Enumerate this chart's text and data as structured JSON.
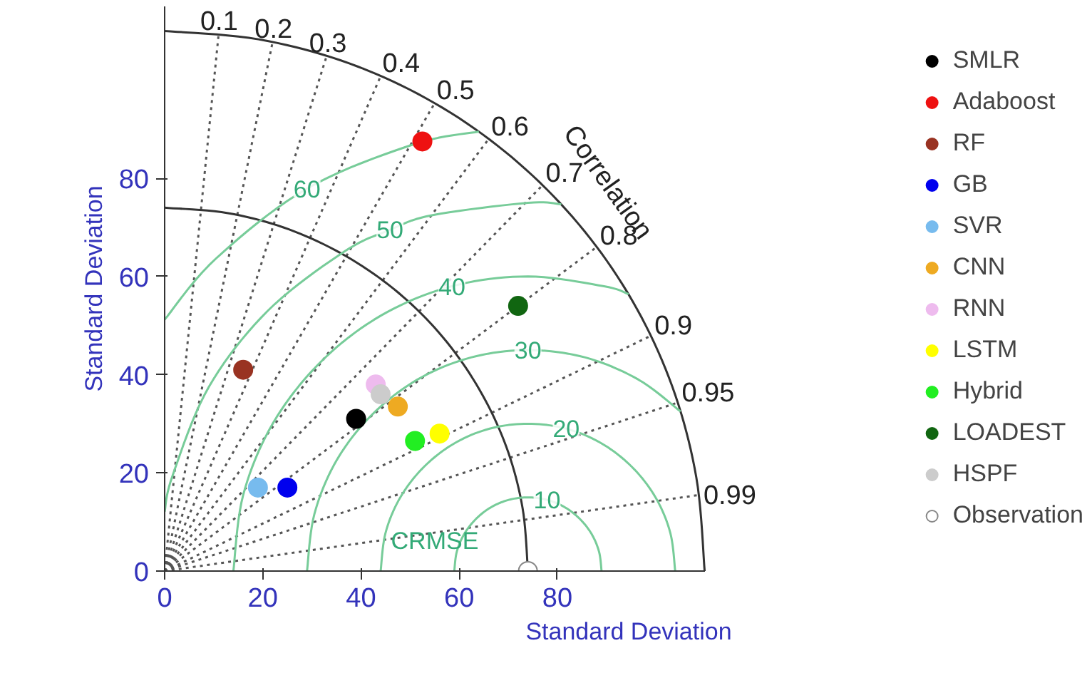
{
  "chart_data": {
    "type": "scatter",
    "xlabel": "Standard Deviation",
    "ylabel": "Standard Deviation",
    "xlim": [
      0,
      110
    ],
    "ylim": [
      0,
      115
    ],
    "xticks": [
      0,
      20,
      40,
      60,
      80
    ],
    "yticks": [
      0,
      20,
      40,
      60,
      80
    ],
    "legend": "right",
    "marker": "circle",
    "series": [
      {
        "type": "line",
        "marker": "none",
        "line_style": "dotted",
        "color": "#555555",
        "x": [
          0,
          11
        ],
        "values": [
          0,
          109.4
        ]
      },
      {
        "type": "line",
        "marker": "none",
        "line_style": "dotted",
        "color": "#555555",
        "x": [
          0,
          22
        ],
        "values": [
          0,
          107.8
        ]
      },
      {
        "type": "line",
        "marker": "none",
        "line_style": "dotted",
        "color": "#555555",
        "x": [
          0,
          33
        ],
        "values": [
          0,
          104.9
        ]
      },
      {
        "type": "line",
        "marker": "none",
        "line_style": "dotted",
        "color": "#555555",
        "x": [
          0,
          44
        ],
        "values": [
          0,
          100.8
        ]
      },
      {
        "type": "line",
        "marker": "none",
        "line_style": "dotted",
        "color": "#555555",
        "x": [
          0,
          55
        ],
        "values": [
          0,
          95.3
        ]
      },
      {
        "type": "line",
        "marker": "none",
        "line_style": "dotted",
        "color": "#555555",
        "x": [
          0,
          66
        ],
        "values": [
          0,
          88
        ]
      },
      {
        "type": "line",
        "marker": "none",
        "line_style": "dotted",
        "color": "#555555",
        "x": [
          0,
          77
        ],
        "values": [
          0,
          78.6
        ]
      },
      {
        "type": "line",
        "marker": "none",
        "line_style": "dotted",
        "color": "#555555",
        "x": [
          0,
          88
        ],
        "values": [
          0,
          66
        ]
      },
      {
        "type": "line",
        "marker": "none",
        "line_style": "dotted",
        "color": "#555555",
        "x": [
          0,
          99
        ],
        "values": [
          0,
          47.9
        ]
      },
      {
        "type": "line",
        "marker": "none",
        "line_style": "dotted",
        "color": "#555555",
        "x": [
          0,
          104.5
        ],
        "values": [
          0,
          34.3
        ]
      },
      {
        "type": "line",
        "marker": "none",
        "line_style": "dotted",
        "color": "#555555",
        "x": [
          0,
          108.9
        ],
        "values": [
          0,
          15.5
        ]
      },
      {
        "type": "line",
        "marker": "none",
        "line_style": "solid",
        "color": "#333333",
        "x": [
          110,
          108.3,
          103.4,
          95.3,
          84.3,
          70.7,
          55,
          37.6,
          19.1,
          0
        ],
        "values": [
          0,
          19.1,
          37.6,
          55,
          70.7,
          84.3,
          95.3,
          103.4,
          108.3,
          110
        ]
      },
      {
        "type": "line",
        "marker": "none",
        "line_style": "solid",
        "color": "#333333",
        "x": [
          74,
          72.9,
          69.6,
          64.1,
          56.7,
          47.6,
          37,
          25.3,
          12.9,
          0
        ],
        "values": [
          0,
          12.9,
          25.3,
          37,
          47.6,
          56.7,
          64.1,
          69.6,
          72.9,
          74
        ]
      },
      {
        "type": "line",
        "marker": "none",
        "line_style": "solid",
        "color": "#77cc99",
        "x": [
          89,
          88.5,
          87,
          84.6,
          81.5,
          77.9,
          74,
          70.1,
          66.5,
          63.4,
          61,
          59.5,
          59
        ],
        "values": [
          0,
          3.9,
          7.5,
          10.6,
          13,
          14.5,
          15,
          14.5,
          13,
          10.6,
          7.5,
          3.9,
          0
        ]
      },
      {
        "type": "line",
        "marker": "none",
        "line_style": "solid",
        "color": "#77cc99",
        "x": [
          104,
          103,
          100,
          95.2,
          89,
          81.8,
          74,
          66.2,
          59,
          52.8,
          48,
          45,
          44
        ],
        "values": [
          0,
          7.8,
          15,
          21.2,
          26,
          29,
          30,
          29,
          26,
          21.2,
          15,
          7.8,
          0
        ]
      },
      {
        "type": "line",
        "marker": "none",
        "line_style": "solid",
        "color": "#77cc99",
        "x": [
          105.1,
          96.5,
          85.7,
          74,
          62.4,
          51.5,
          42.2,
          35,
          30.5,
          29
        ],
        "values": [
          32.5,
          39,
          43.5,
          45,
          43.5,
          39,
          31.8,
          22.5,
          11.6,
          0
        ]
      },
      {
        "type": "line",
        "marker": "none",
        "line_style": "solid",
        "color": "#77cc99",
        "x": [
          94.5,
          89.5,
          74,
          58.5,
          44,
          31.6,
          22,
          16,
          14
        ],
        "values": [
          56.4,
          58,
          60,
          58,
          52,
          42.4,
          30,
          15.5,
          0
        ]
      },
      {
        "type": "line",
        "marker": "none",
        "line_style": "solid",
        "color": "#77cc99",
        "x": [
          80.8,
          74,
          54.6,
          45.9,
          36.5,
          21,
          9,
          1.6,
          0
        ],
        "values": [
          74.7,
          75,
          72.5,
          69.5,
          65,
          53,
          37.5,
          19.4,
          12.1
        ]
      },
      {
        "type": "line",
        "marker": "none",
        "line_style": "solid",
        "color": "#77cc99",
        "x": [
          64,
          50.7,
          29,
          10.4,
          0
        ],
        "values": [
          89.5,
          86.9,
          77.9,
          63.6,
          51.2
        ]
      },
      {
        "name": "SMLR",
        "color": "#000000",
        "x": [
          39
        ],
        "values": [
          31
        ]
      },
      {
        "name": "Adaboost",
        "color": "#ee1111",
        "x": [
          52.5
        ],
        "values": [
          87.5
        ]
      },
      {
        "name": "RF",
        "color": "#993322",
        "x": [
          16
        ],
        "values": [
          41
        ]
      },
      {
        "name": "GB",
        "color": "#0000ee",
        "x": [
          25
        ],
        "values": [
          17
        ]
      },
      {
        "name": "SVR",
        "color": "#77bbee",
        "x": [
          19
        ],
        "values": [
          17
        ]
      },
      {
        "name": "CNN",
        "color": "#eeaa22",
        "x": [
          47.5
        ],
        "values": [
          33.5
        ]
      },
      {
        "name": "RNN",
        "color": "#eebbee",
        "x": [
          43
        ],
        "values": [
          38
        ]
      },
      {
        "name": "LSTM",
        "color": "#ffff00",
        "x": [
          56
        ],
        "values": [
          28
        ]
      },
      {
        "name": "Hybrid",
        "color": "#22ee22",
        "x": [
          51
        ],
        "values": [
          26.5
        ]
      },
      {
        "name": "LOADEST",
        "color": "#116611",
        "x": [
          72
        ],
        "values": [
          54
        ]
      },
      {
        "name": "HSPF",
        "color": "#cccccc",
        "x": [
          44
        ],
        "values": [
          36
        ]
      },
      {
        "name": "Observation",
        "color": "#ffffff",
        "x": [
          74
        ],
        "values": [
          0
        ]
      }
    ],
    "annotations": [
      {
        "text": "0.1",
        "x": 11,
        "y": 109.4
      },
      {
        "text": "0.2",
        "x": 22,
        "y": 107.8
      },
      {
        "text": "0.3",
        "x": 33,
        "y": 104.9
      },
      {
        "text": "0.4",
        "x": 44,
        "y": 100.8
      },
      {
        "text": "0.5",
        "x": 55,
        "y": 95.3
      },
      {
        "text": "0.6",
        "x": 66,
        "y": 88
      },
      {
        "text": "0.7",
        "x": 77,
        "y": 78.6
      },
      {
        "text": "0.8",
        "x": 88,
        "y": 66
      },
      {
        "text": "0.9",
        "x": 99,
        "y": 47.9
      },
      {
        "text": "0.95",
        "x": 104.5,
        "y": 34.3
      },
      {
        "text": "0.99",
        "x": 108.9,
        "y": 15.5
      },
      {
        "text": "10",
        "x": 77.9,
        "y": 14.5
      },
      {
        "text": "20",
        "x": 81.8,
        "y": 29
      },
      {
        "text": "30",
        "x": 74,
        "y": 45
      },
      {
        "text": "40",
        "x": 58.5,
        "y": 58
      },
      {
        "text": "50",
        "x": 45.9,
        "y": 69.5
      },
      {
        "text": "60",
        "x": 29,
        "y": 77.9
      },
      "CRMSE",
      "Correlation"
    ]
  }
}
